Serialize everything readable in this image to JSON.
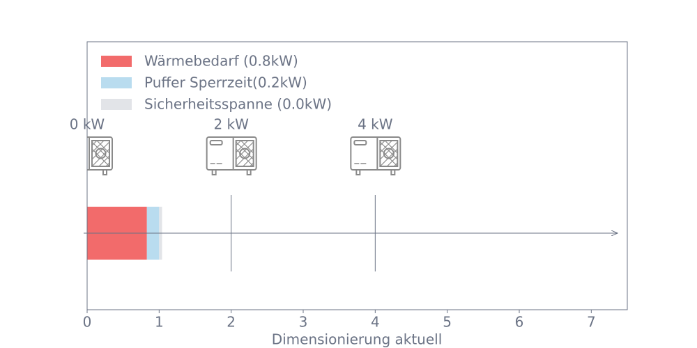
{
  "chart_data": {
    "type": "bar",
    "orientation": "horizontal",
    "stacked": true,
    "x_label": "Dimensionierung aktuell",
    "categories": [
      null
    ],
    "series": [
      {
        "name": "Wärmebedarf (0.8kW)",
        "color": "#f26b6b",
        "values": [
          0.83
        ]
      },
      {
        "name": "Puffer Sperrzeit(0.2kW)",
        "color": "#b9dcef",
        "values": [
          0.17
        ]
      },
      {
        "name": "Sicherheitsspanne (0.0kW)",
        "color": "#e2e4e8",
        "values": [
          0.04
        ]
      }
    ],
    "xlim": [
      0,
      7.5
    ],
    "xticks": [
      0,
      1,
      2,
      3,
      4,
      5,
      6,
      7
    ],
    "markers": [
      {
        "x": 0,
        "label": "0 kW"
      },
      {
        "x": 2,
        "label": "2 kW"
      },
      {
        "x": 4,
        "label": "4 kW"
      }
    ],
    "legend": "upper-left",
    "grid": false
  }
}
